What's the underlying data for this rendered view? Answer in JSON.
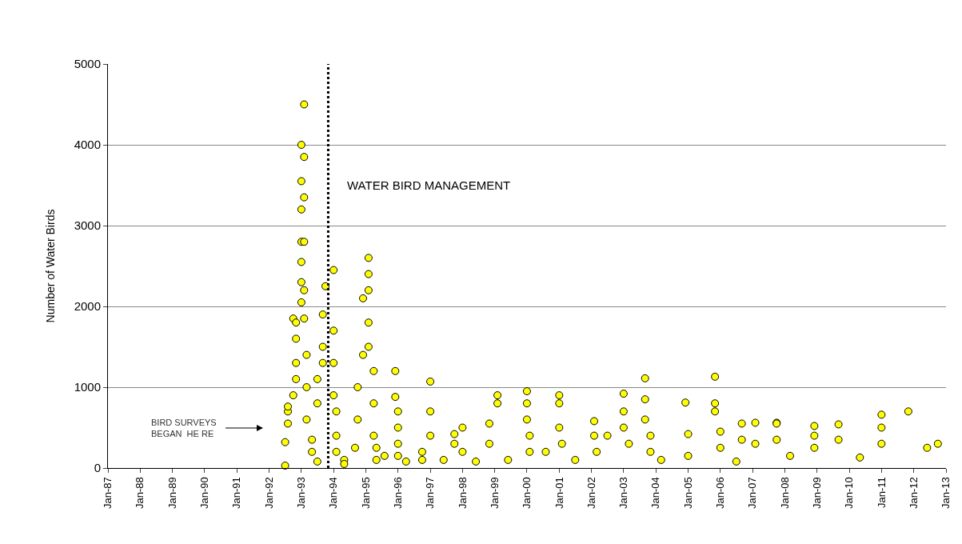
{
  "chart_data": {
    "type": "scatter",
    "ylabel": "Number of Water Birds",
    "x": [
      "1992-07",
      "1992-07",
      "1992-08",
      "1992-08",
      "1992-08",
      "1992-10",
      "1992-10",
      "1992-11",
      "1992-11",
      "1992-11",
      "1992-11",
      "1993-01",
      "1993-01",
      "1993-01",
      "1993-01",
      "1993-01",
      "1993-01",
      "1993-01",
      "1993-02",
      "1993-02",
      "1993-02",
      "1993-02",
      "1993-02",
      "1993-02",
      "1993-03",
      "1993-03",
      "1993-03",
      "1993-05",
      "1993-05",
      "1993-07",
      "1993-07",
      "1993-07",
      "1993-09",
      "1993-09",
      "1993-09",
      "1993-10",
      "1994-01",
      "1994-01",
      "1994-01",
      "1994-01",
      "1994-02",
      "1994-02",
      "1994-02",
      "1994-05",
      "1994-05",
      "1994-09",
      "1994-10",
      "1994-10",
      "1994-12",
      "1994-12",
      "1995-02",
      "1995-02",
      "1995-02",
      "1995-02",
      "1995-02",
      "1995-04",
      "1995-04",
      "1995-04",
      "1995-05",
      "1995-05",
      "1995-08",
      "1995-12",
      "1995-12",
      "1996-01",
      "1996-01",
      "1996-01",
      "1996-01",
      "1996-04",
      "1996-10",
      "1996-10",
      "1997-01",
      "1997-01",
      "1997-01",
      "1997-06",
      "1997-10",
      "1997-10",
      "1998-01",
      "1998-01",
      "1998-06",
      "1998-11",
      "1998-11",
      "1999-02",
      "1999-02",
      "1999-06",
      "2000-01",
      "2000-01",
      "2000-01",
      "2000-02",
      "2000-02",
      "2000-08",
      "2001-01",
      "2001-01",
      "2001-01",
      "2001-02",
      "2001-07",
      "2002-02",
      "2002-02",
      "2002-03",
      "2002-07",
      "2003-01",
      "2003-01",
      "2003-01",
      "2003-03",
      "2003-09",
      "2003-09",
      "2003-09",
      "2003-11",
      "2003-11",
      "2004-03",
      "2004-12",
      "2005-01",
      "2005-01",
      "2005-11",
      "2005-11",
      "2005-11",
      "2006-01",
      "2006-01",
      "2006-07",
      "2006-09",
      "2006-09",
      "2007-02",
      "2007-02",
      "2007-10",
      "2007-10",
      "2007-10",
      "2008-03",
      "2008-12",
      "2008-12",
      "2008-12",
      "2009-09",
      "2009-09",
      "2010-05",
      "2011-01",
      "2011-01",
      "2011-01",
      "2011-11",
      "2012-06",
      "2012-10"
    ],
    "values": [
      30,
      320,
      550,
      700,
      760,
      1850,
      900,
      1100,
      1300,
      1600,
      1800,
      2050,
      2300,
      2550,
      2800,
      3200,
      3550,
      4000,
      4500,
      3850,
      3350,
      2800,
      2200,
      1850,
      1400,
      1000,
      600,
      350,
      200,
      80,
      800,
      1100,
      1300,
      1500,
      1900,
      2250,
      2450,
      1700,
      1300,
      900,
      700,
      400,
      200,
      100,
      50,
      250,
      600,
      1000,
      2100,
      1400,
      2600,
      2400,
      2200,
      1800,
      1500,
      1200,
      800,
      400,
      250,
      100,
      150,
      1200,
      880,
      700,
      500,
      300,
      150,
      80,
      200,
      100,
      1070,
      700,
      400,
      100,
      420,
      300,
      500,
      200,
      80,
      550,
      300,
      900,
      800,
      100,
      950,
      800,
      600,
      400,
      200,
      200,
      900,
      800,
      500,
      300,
      100,
      580,
      400,
      200,
      400,
      920,
      700,
      500,
      300,
      1110,
      850,
      600,
      400,
      200,
      100,
      810,
      420,
      150,
      1130,
      800,
      700,
      450,
      250,
      80,
      550,
      350,
      560,
      300,
      560,
      550,
      350,
      150,
      520,
      400,
      250,
      540,
      350,
      130,
      660,
      500,
      300,
      700,
      250,
      300
    ],
    "color": "#ffff00",
    "marker": "circle",
    "grid": "y",
    "xlim": [
      "1987-01",
      "2013-01"
    ],
    "xticks": [
      {
        "value": "1987-01",
        "label": "Jan-87"
      },
      {
        "value": "1988-01",
        "label": "Jan-88"
      },
      {
        "value": "1989-01",
        "label": "Jan-89"
      },
      {
        "value": "1990-01",
        "label": "Jan-90"
      },
      {
        "value": "1991-01",
        "label": "Jan-91"
      },
      {
        "value": "1992-01",
        "label": "Jan-92"
      },
      {
        "value": "1993-01",
        "label": "Jan-93"
      },
      {
        "value": "1994-01",
        "label": "Jan-94"
      },
      {
        "value": "1995-01",
        "label": "Jan-95"
      },
      {
        "value": "1996-01",
        "label": "Jan-96"
      },
      {
        "value": "1997-01",
        "label": "Jan-97"
      },
      {
        "value": "1998-01",
        "label": "Jan-98"
      },
      {
        "value": "1999-01",
        "label": "Jan-99"
      },
      {
        "value": "2000-01",
        "label": "Jan-00"
      },
      {
        "value": "2001-01",
        "label": "Jan-01"
      },
      {
        "value": "2002-01",
        "label": "Jan-02"
      },
      {
        "value": "2003-01",
        "label": "Jan-03"
      },
      {
        "value": "2004-01",
        "label": "Jan-04"
      },
      {
        "value": "2005-01",
        "label": "Jan-05"
      },
      {
        "value": "2006-01",
        "label": "Jan-06"
      },
      {
        "value": "2007-01",
        "label": "Jan-07"
      },
      {
        "value": "2008-01",
        "label": "Jan-08"
      },
      {
        "value": "2009-01",
        "label": "Jan-09"
      },
      {
        "value": "2010-01",
        "label": "Jan-10"
      },
      {
        "value": "2011-01",
        "label": "Jan-11"
      },
      {
        "value": "2012-01",
        "label": "Jan-12"
      },
      {
        "value": "2013-01",
        "label": "Jan-13"
      }
    ],
    "ylim": [
      0,
      5000
    ],
    "yticks": [
      0,
      1000,
      2000,
      3000,
      4000,
      5000
    ],
    "ref_lines": [
      {
        "axis": "x",
        "value": "1993-11",
        "label": "WATER BIRD MANAGEMENT",
        "color": "#000000",
        "line_style": "dotted"
      }
    ],
    "annotations": [
      "BIRD SURVEYS\nBEGAN  HE RE"
    ]
  }
}
